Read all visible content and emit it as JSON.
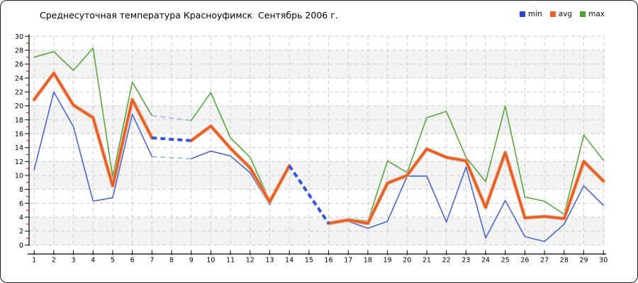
{
  "title": "Среднесуточная температура Красноуфимск  Сентябрь 2006 г.",
  "chart_data": {
    "type": "line",
    "title": "Среднесуточная температура Красноуфимск  Сентябрь 2006 г.",
    "x": [
      1,
      2,
      3,
      4,
      5,
      6,
      7,
      8,
      9,
      10,
      11,
      12,
      13,
      14,
      15,
      16,
      17,
      18,
      19,
      20,
      21,
      22,
      23,
      24,
      25,
      26,
      27,
      28,
      29,
      30
    ],
    "ylim": [
      0,
      30
    ],
    "ytick_step": 2,
    "grid": {
      "on": true,
      "color": "#cbcbcb",
      "band_color": "#f3f3f3"
    },
    "axis": {
      "color": "#000000",
      "minor_tick_color": "#e00000",
      "label_color": "#000000"
    },
    "legend_position": "top-right",
    "missing_days": [
      8,
      15
    ],
    "interpolation": {
      "avg_color": "#3353dd",
      "minmax_color": "#9fb0ef"
    },
    "series": [
      {
        "name": "min",
        "color": "#4a67d0",
        "legend_color": "#2b46d9",
        "width": 1.6,
        "values": [
          10.8,
          22.0,
          17.0,
          6.3,
          6.8,
          18.8,
          12.7,
          null,
          12.4,
          13.5,
          12.8,
          10.4,
          5.8,
          11.3,
          null,
          3.0,
          3.4,
          2.4,
          3.4,
          9.9,
          9.9,
          3.3,
          11.2,
          1.0,
          6.4,
          1.2,
          0.5,
          3.0,
          8.5,
          5.7
        ]
      },
      {
        "name": "avg",
        "color": "#e05e28",
        "halo_color": "#f5ac83",
        "legend_color": "#e8632c",
        "width": 3.2,
        "values": [
          20.9,
          24.7,
          20.1,
          18.3,
          8.5,
          20.9,
          15.4,
          null,
          15.0,
          17.1,
          13.9,
          11.1,
          6.2,
          11.4,
          null,
          3.1,
          3.6,
          3.1,
          8.9,
          10.0,
          13.8,
          12.6,
          12.1,
          5.4,
          13.3,
          3.9,
          4.1,
          3.8,
          12.0,
          9.2
        ]
      },
      {
        "name": "max",
        "color": "#58a63e",
        "legend_color": "#4aa52e",
        "width": 1.6,
        "values": [
          27.0,
          27.8,
          25.1,
          28.3,
          9.8,
          23.4,
          18.6,
          null,
          17.9,
          21.9,
          15.4,
          12.6,
          6.4,
          11.5,
          null,
          3.3,
          3.8,
          3.4,
          12.1,
          10.4,
          18.3,
          19.2,
          12.6,
          9.1,
          20.0,
          6.9,
          6.3,
          4.4,
          15.8,
          12.2
        ]
      }
    ]
  }
}
